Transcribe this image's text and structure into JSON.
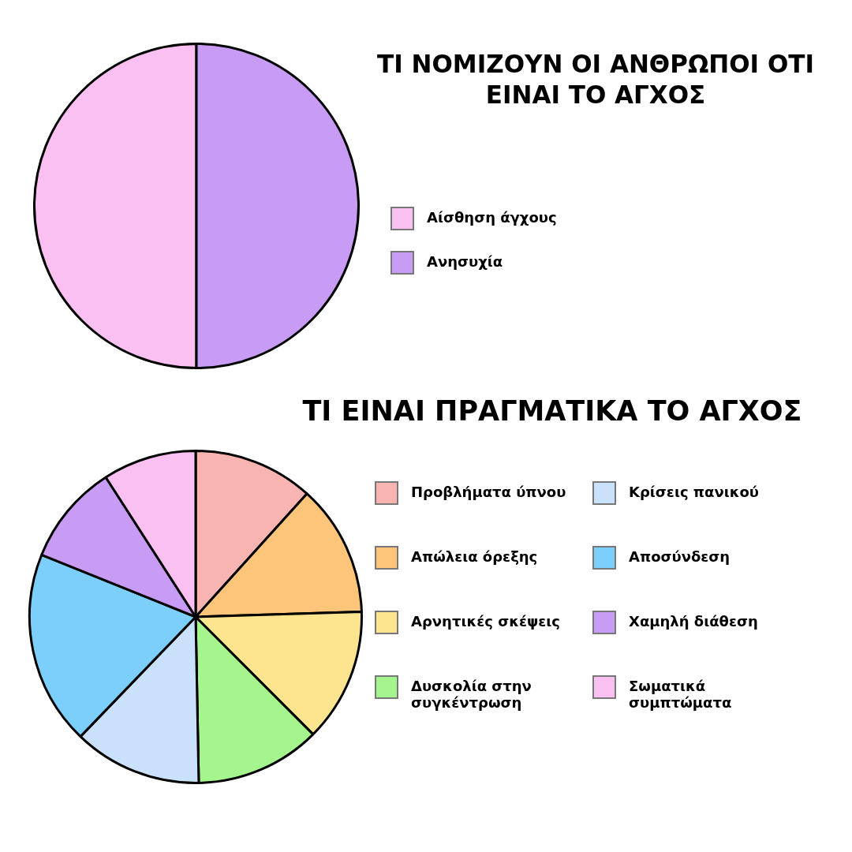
{
  "chart_data": [
    {
      "type": "pie",
      "title": "ΤΙ ΝΟΜΙΖΟΥΝ ΟΙ ΑΝΘΡΩΠΟΙ ΟΤΙ ΕΙΝΑΙ ΤΟ ΑΓΧΟΣ",
      "categories": [
        "Αίσθηση άγχους",
        "Ανησυχία"
      ],
      "values": [
        50,
        50
      ],
      "colors": [
        "#fbc0f2",
        "#c89bf5"
      ],
      "legend": "right"
    },
    {
      "type": "pie",
      "title": "ΤΙ ΕΙΝΑΙ ΠΡΑΓΜΑΤΙΚΑ ΤΟ ΑΓΧΟΣ",
      "categories": [
        "Προβλήματα ύπνου",
        "Απώλεια όρεξης",
        "Αρνητικές σκέψεις",
        "Δυσκολία στην συγκέντρωση",
        "Κρίσεις πανικού",
        "Αποσύνδεση",
        "Χαμηλή διάθεση",
        "Σωματικά συμπτώματα"
      ],
      "values": [
        11.7,
        12.8,
        13.0,
        12.2,
        12.5,
        18.9,
        9.8,
        9.1
      ],
      "colors": [
        "#f8b4b0",
        "#fcc57a",
        "#fde58f",
        "#a5f58f",
        "#c9e1fa",
        "#7ccffa",
        "#c89bf5",
        "#fbc0f2"
      ],
      "legend": "right"
    }
  ]
}
